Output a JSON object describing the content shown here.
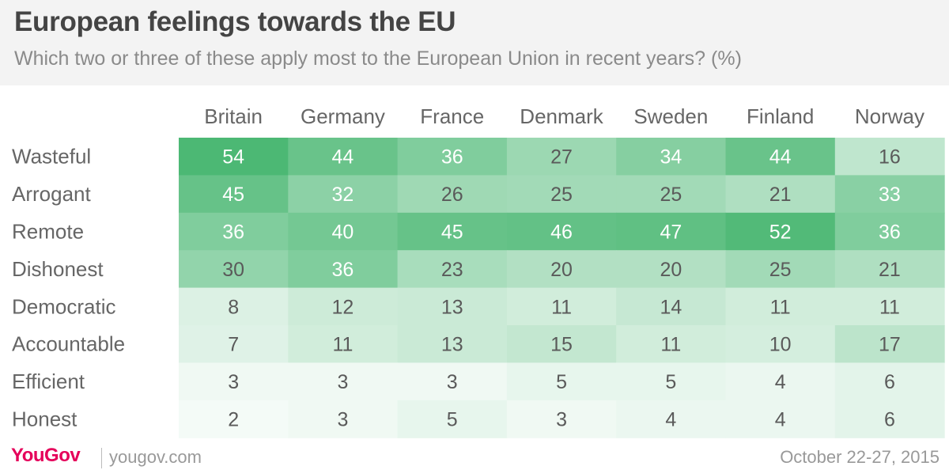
{
  "header": {
    "title": "European feelings towards the EU",
    "subtitle": "Which two or three of these apply most to the European Union in recent years? (%)"
  },
  "footer": {
    "brand": "YouGov",
    "website": "yougov.com",
    "date": "October 22-27, 2015"
  },
  "colors": {
    "high": "#4cb874",
    "low": "#ffffff",
    "header_bg": "#f3f3f3",
    "brand": "#e5005a"
  },
  "chart_data": {
    "type": "heatmap",
    "title": "European feelings towards the EU",
    "subtitle": "Which two or three of these apply most to the European Union in recent years? (%)",
    "columns": [
      "Britain",
      "Germany",
      "France",
      "Denmark",
      "Sweden",
      "Finland",
      "Norway"
    ],
    "rows": [
      "Wasteful",
      "Arrogant",
      "Remote",
      "Dishonest",
      "Democratic",
      "Accountable",
      "Efficient",
      "Honest"
    ],
    "values": [
      [
        54,
        44,
        36,
        27,
        34,
        44,
        16
      ],
      [
        45,
        32,
        26,
        25,
        25,
        21,
        33
      ],
      [
        36,
        40,
        45,
        46,
        47,
        52,
        36
      ],
      [
        30,
        36,
        23,
        20,
        20,
        25,
        21
      ],
      [
        8,
        12,
        13,
        11,
        14,
        11,
        11
      ],
      [
        7,
        11,
        13,
        15,
        11,
        10,
        17
      ],
      [
        3,
        3,
        3,
        5,
        5,
        4,
        6
      ],
      [
        2,
        3,
        5,
        3,
        4,
        4,
        6
      ]
    ]
  }
}
